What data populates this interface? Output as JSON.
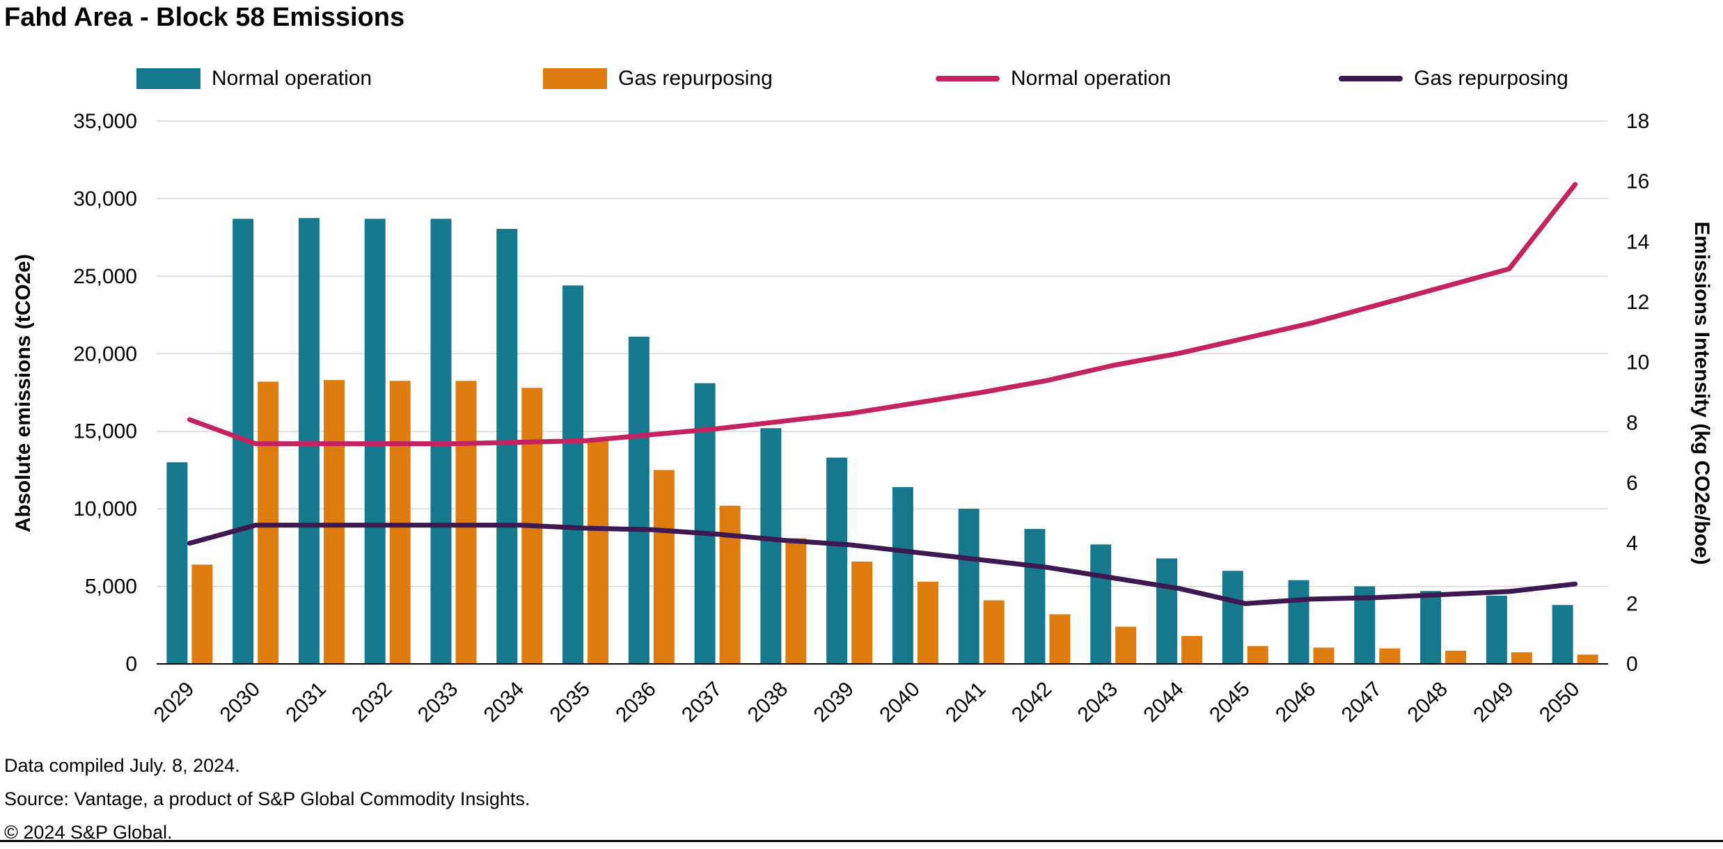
{
  "title": "Fahd Area - Block 58 Emissions",
  "footer": {
    "compiled": "Data compiled July. 8, 2024.",
    "source": "Source: Vantage, a product of S&P Global Commodity Insights.",
    "copyright": "© 2024 S&P Global."
  },
  "colors": {
    "teal": "#16788C",
    "orange": "#DE7C10",
    "pink": "#C5235F",
    "purple": "#3E1851",
    "gridline": "#d9d9d9",
    "axis": "#000000"
  },
  "chart_data": {
    "type": "bar+line",
    "categories": [
      "2029",
      "2030",
      "2031",
      "2032",
      "2033",
      "2034",
      "2035",
      "2036",
      "2037",
      "2038",
      "2039",
      "2040",
      "2041",
      "2042",
      "2043",
      "2044",
      "2045",
      "2046",
      "2047",
      "2048",
      "2049",
      "2050"
    ],
    "bar_series": [
      {
        "name": "Normal operation",
        "axis": "left",
        "color": "#16788C",
        "values": [
          13000,
          28700,
          28750,
          28700,
          28700,
          28050,
          24400,
          21100,
          18100,
          15200,
          13300,
          11400,
          10000,
          8700,
          7700,
          6800,
          6000,
          5400,
          5000,
          4700,
          4400,
          3800
        ]
      },
      {
        "name": "Gas repurposing",
        "axis": "left",
        "color": "#DE7C10",
        "values": [
          6400,
          18200,
          18300,
          18250,
          18250,
          17800,
          14500,
          12500,
          10200,
          8100,
          6600,
          5300,
          4100,
          3200,
          2400,
          1800,
          1150,
          1050,
          1000,
          850,
          750,
          600
        ]
      }
    ],
    "line_series": [
      {
        "name": "Normal operation",
        "axis": "right",
        "color": "#C5235F",
        "values": [
          8.1,
          7.3,
          7.3,
          7.3,
          7.3,
          7.35,
          7.4,
          7.6,
          7.8,
          8.05,
          8.3,
          8.65,
          9.0,
          9.4,
          9.9,
          10.3,
          10.8,
          11.3,
          11.9,
          12.5,
          13.1,
          15.9
        ]
      },
      {
        "name": "Gas repurposing",
        "axis": "right",
        "color": "#3E1851",
        "values": [
          4.0,
          4.6,
          4.6,
          4.6,
          4.6,
          4.6,
          4.5,
          4.45,
          4.3,
          4.1,
          3.95,
          3.7,
          3.45,
          3.2,
          2.85,
          2.5,
          2.0,
          2.15,
          2.2,
          2.3,
          2.4,
          2.65
        ]
      }
    ],
    "left_axis": {
      "label": "Absolute emissions (tCO2e)",
      "lim": [
        0,
        35000
      ],
      "ticks": [
        0,
        5000,
        10000,
        15000,
        20000,
        25000,
        30000,
        35000
      ]
    },
    "right_axis": {
      "label": "Emissions Intensity (kg CO2e/boe)",
      "lim": [
        0,
        18
      ],
      "ticks": [
        0,
        2,
        4,
        6,
        8,
        10,
        12,
        14,
        16,
        18
      ]
    },
    "legend": [
      {
        "label": "Normal operation",
        "type": "bar",
        "color": "#16788C"
      },
      {
        "label": "Gas repurposing",
        "type": "bar",
        "color": "#DE7C10"
      },
      {
        "label": "Normal operation",
        "type": "line",
        "color": "#C5235F"
      },
      {
        "label": "Gas repurposing",
        "type": "line",
        "color": "#3E1851"
      }
    ],
    "grid": "horizontal",
    "legend_position": "top"
  }
}
